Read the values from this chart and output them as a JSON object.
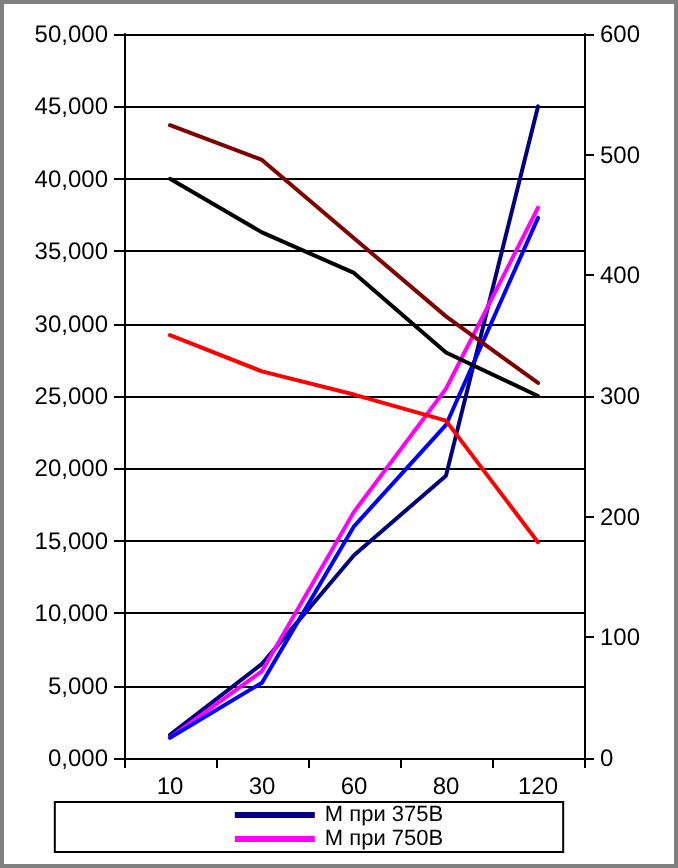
{
  "chart_data": {
    "type": "line",
    "categories": [
      "10",
      "30",
      "60",
      "80",
      "120"
    ],
    "series": [
      {
        "name": "M при 375В",
        "color": "#000080",
        "values": [
          1600,
          6500,
          14000,
          19500,
          45000
        ]
      },
      {
        "name": "M при 750В",
        "color": "#ff00ff",
        "values": [
          1400,
          6000,
          17000,
          25500,
          38000
        ]
      },
      {
        "color": "#0000ff",
        "values": [
          1400,
          5200,
          16000,
          23000,
          37300
        ]
      },
      {
        "color": "#000000",
        "values": [
          40000,
          36300,
          33500,
          28000,
          25000
        ]
      },
      {
        "color": "#800000",
        "values": [
          43700,
          41300,
          35900,
          30500,
          25900
        ]
      },
      {
        "color": "#ff0000",
        "values": [
          29200,
          26700,
          25100,
          23300,
          14900
        ]
      }
    ],
    "ylim": [
      0,
      50000
    ],
    "yticks": [
      {
        "value": 0,
        "label": "0,000"
      },
      {
        "value": 5000,
        "label": "5,000"
      },
      {
        "value": 10000,
        "label": "10,000"
      },
      {
        "value": 15000,
        "label": "15,000"
      },
      {
        "value": 20000,
        "label": "20,000"
      },
      {
        "value": 25000,
        "label": "25,000"
      },
      {
        "value": 30000,
        "label": "30,000"
      },
      {
        "value": 35000,
        "label": "35,000"
      },
      {
        "value": 40000,
        "label": "40,000"
      },
      {
        "value": 45000,
        "label": "45,000"
      },
      {
        "value": 50000,
        "label": "50,000"
      }
    ],
    "y2lim": [
      0,
      600
    ],
    "y2ticks": [
      0,
      100,
      200,
      300,
      400,
      500,
      600
    ],
    "grid": "y",
    "legend": "bottom",
    "marker": "none",
    "line_style": "solid"
  }
}
